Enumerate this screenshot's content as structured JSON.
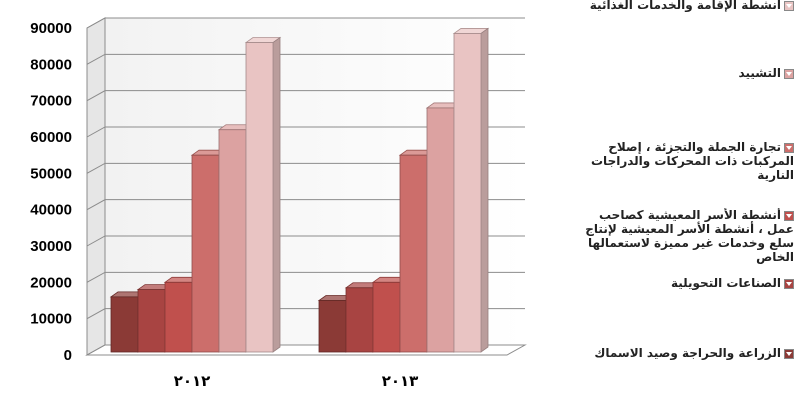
{
  "chart_data": {
    "type": "bar",
    "categories": [
      "٢٠١٢",
      "٢٠١٣"
    ],
    "series": [
      {
        "name": "الزراعة والحراجة وصيد الاسماك",
        "values": [
          16000,
          15000
        ],
        "color": "#8b3a36"
      },
      {
        "name": "الصناعات التحويلية",
        "values": [
          18000,
          18500
        ],
        "color": "#a84442"
      },
      {
        "name": "أنشطة الأسر المعيشية كصاحب عمل ، أنشطة الأسر المعيشية لإنتاج سلع وخدمات غير مميزة لاستعمالها الخاص",
        "values": [
          20000,
          20000
        ],
        "color": "#c0504d"
      },
      {
        "name": "تجارة الجملة والتجزئة ، إصلاح المركبات ذات المحركات والدراجات النارية",
        "values": [
          55000,
          55000
        ],
        "color": "#cc6e6b"
      },
      {
        "name": "التشييد",
        "values": [
          62000,
          68000
        ],
        "color": "#dca2a1"
      },
      {
        "name": "أنشطة الإقامة والخدمات الغذائية",
        "values": [
          86000,
          88500
        ],
        "color": "#e9c4c3"
      }
    ],
    "yticks": [
      "0",
      "10000",
      "20000",
      "30000",
      "40000",
      "50000",
      "60000",
      "70000",
      "80000",
      "90000"
    ],
    "ylim": [
      0,
      90000
    ],
    "grid": true,
    "legend_placement": "right"
  }
}
